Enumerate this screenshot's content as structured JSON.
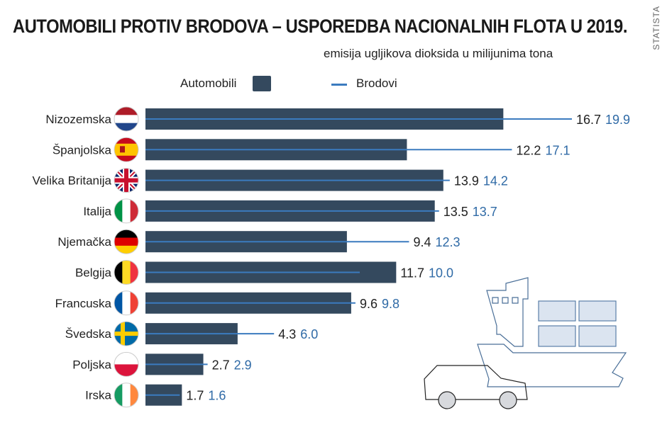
{
  "chart_data": {
    "type": "bar",
    "title": "AUTOMOBILI PROTIV BRODOVA – USPOREDBA NACIONALNIH FLOTA U 2019.",
    "subtitle": "emisija ugljikova dioksida u milijunima tona",
    "source": "STATISTA",
    "legend": {
      "placement": "top",
      "cars": "Automobili",
      "ships": "Brodovi"
    },
    "categories": [
      "Nizozemska",
      "Španjolska",
      "Velika Britanija",
      "Italija",
      "Njemačka",
      "Belgija",
      "Francuska",
      "Švedska",
      "Poljska",
      "Irska"
    ],
    "series": [
      {
        "name": "Automobili",
        "values": [
          16.7,
          12.2,
          13.9,
          13.5,
          9.4,
          11.7,
          9.6,
          4.3,
          2.7,
          1.7
        ]
      },
      {
        "name": "Brodovi",
        "values": [
          19.9,
          17.1,
          14.2,
          13.7,
          12.3,
          10.0,
          9.8,
          6.0,
          2.9,
          1.6
        ]
      }
    ],
    "labels": {
      "cars": [
        "16.7",
        "12.2",
        "13.9",
        "13.5",
        "9.4",
        "11.7",
        "9.6",
        "4.3",
        "2.7",
        "1.7"
      ],
      "ships": [
        "19.9",
        "17.1",
        "14.2",
        "13.7",
        "12.3",
        "10.0",
        "9.8",
        "6.0",
        "2.9",
        "1.6"
      ]
    },
    "xlim": [
      0,
      21
    ],
    "colors": {
      "cars": "#34495e",
      "ships": "#3b7bbf",
      "ship_label": "#2f6aa6"
    }
  }
}
